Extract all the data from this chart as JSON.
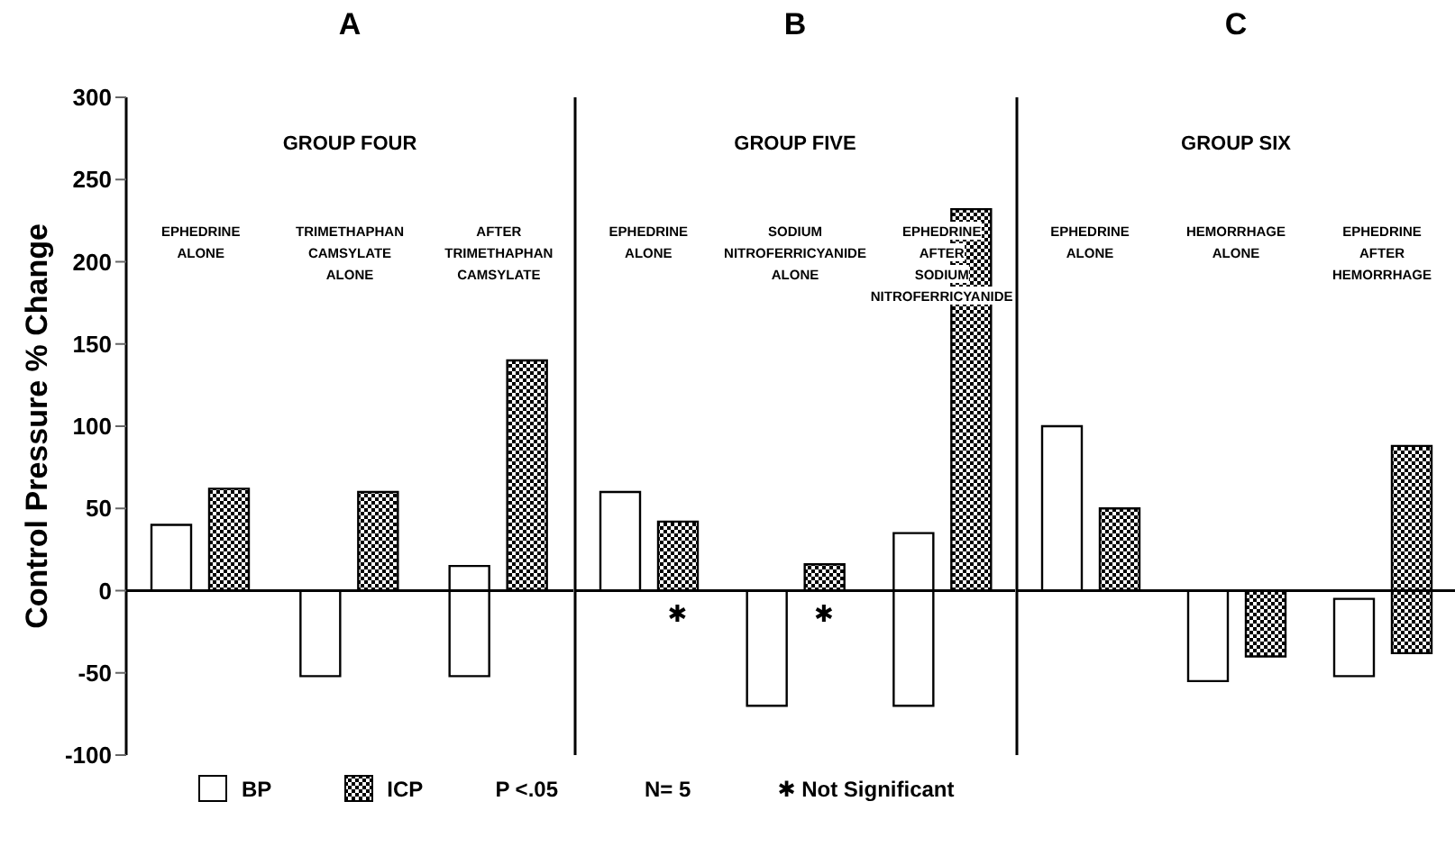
{
  "chart_data": [
    {
      "type": "bar",
      "title": "A",
      "subtitle": "GROUP FOUR",
      "ylabel": "Control Pressure % Change",
      "categories": [
        "EPHEDRINE\nALONE",
        "TRIMETHAPHAN\nCAMSYLATE\nALONE",
        "AFTER\nTRIMETHAPHAN\nCAMSYLATE"
      ],
      "series": [
        {
          "name": "BP",
          "color": "#ffffff",
          "values": [
            40,
            -52,
            67
          ],
          "base": [
            null,
            null,
            -52
          ]
        },
        {
          "name": "ICP",
          "color": "#000000",
          "values": [
            62,
            60,
            140
          ]
        }
      ],
      "ylim": [
        -100,
        300
      ],
      "yticks": [
        -100,
        -50,
        0,
        50,
        100,
        150,
        200,
        250,
        300
      ],
      "ref_lines": [
        {
          "axis": "y",
          "value": 0
        }
      ],
      "legend": "bottom",
      "grid": false,
      "annotations": [
        "P <.05",
        "N= 5",
        "✱ Not Significant"
      ]
    },
    {
      "type": "bar",
      "title": "B",
      "subtitle": "GROUP FIVE",
      "categories": [
        "EPHEDRINE\nALONE",
        "SODIUM\nNITROFERRICYANIDE\nALONE",
        "EPHEDRINE\nAFTER\nSODIUM\nNITROFERRICYANIDE"
      ],
      "series": [
        {
          "color": "#ffffff",
          "values": [
            60,
            -70,
            105
          ],
          "base": [
            null,
            null,
            -70
          ]
        },
        {
          "color": "#000000",
          "values": [
            42,
            16,
            232
          ]
        }
      ],
      "ylim": [
        -100,
        300
      ],
      "tick_labels": "x",
      "ref_lines": [
        {
          "axis": "y",
          "value": 0
        }
      ],
      "grid": false,
      "annotations": [
        {
          "text": "✱",
          "x": "EPHEDRINE\nALONE",
          "y": 0
        },
        {
          "text": "✱",
          "x": "SODIUM\nNITROFERRICYANIDE\nALONE",
          "y": 0
        }
      ]
    },
    {
      "type": "bar",
      "title": "C",
      "subtitle": "GROUP SIX",
      "categories": [
        "EPHEDRINE\nALONE",
        "HEMORRHAGE\nALONE",
        "EPHEDRINE\nAFTER\nHEMORRHAGE"
      ],
      "series": [
        {
          "color": "#ffffff",
          "values": [
            100,
            -55,
            47
          ],
          "base": [
            null,
            null,
            -52
          ]
        },
        {
          "color": "#000000",
          "values": [
            50,
            -40,
            126
          ],
          "base": [
            null,
            null,
            -38
          ]
        }
      ],
      "ylim": [
        -100,
        300
      ],
      "tick_labels": "x",
      "ref_lines": [
        {
          "axis": "y",
          "value": 0
        }
      ],
      "grid": false
    }
  ]
}
